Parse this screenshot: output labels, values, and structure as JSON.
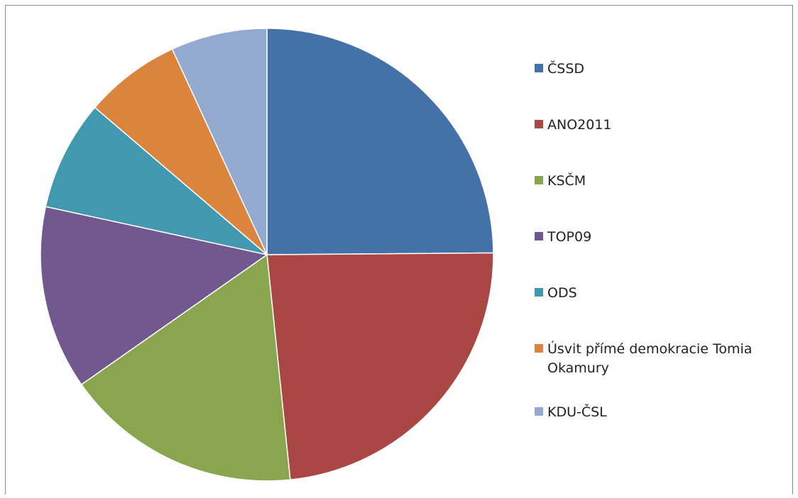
{
  "chart_data": {
    "type": "pie",
    "title": "",
    "categories": [
      "ČSSD",
      "ANO2011",
      "KSČM",
      "TOP09",
      "ODS",
      "Úsvit přímé demokracie Tomia Okamury",
      "KDU-ČSL"
    ],
    "values": [
      25.0,
      23.6,
      17.0,
      13.2,
      7.9,
      6.9,
      6.9
    ],
    "unit": "%",
    "start_angle": "12 o'clock",
    "direction": "clockwise",
    "colors": [
      "#4472a8",
      "#aa4644",
      "#89a54e",
      "#71588f",
      "#4198af",
      "#db843d",
      "#93a9cf"
    ],
    "legend": {
      "position": "right",
      "entries": [
        "ČSSD",
        "ANO2011",
        "KSČM",
        "TOP09",
        "ODS",
        "Úsvit přímé demokracie Tomia Okamury",
        "KDU-ČSL"
      ]
    }
  }
}
